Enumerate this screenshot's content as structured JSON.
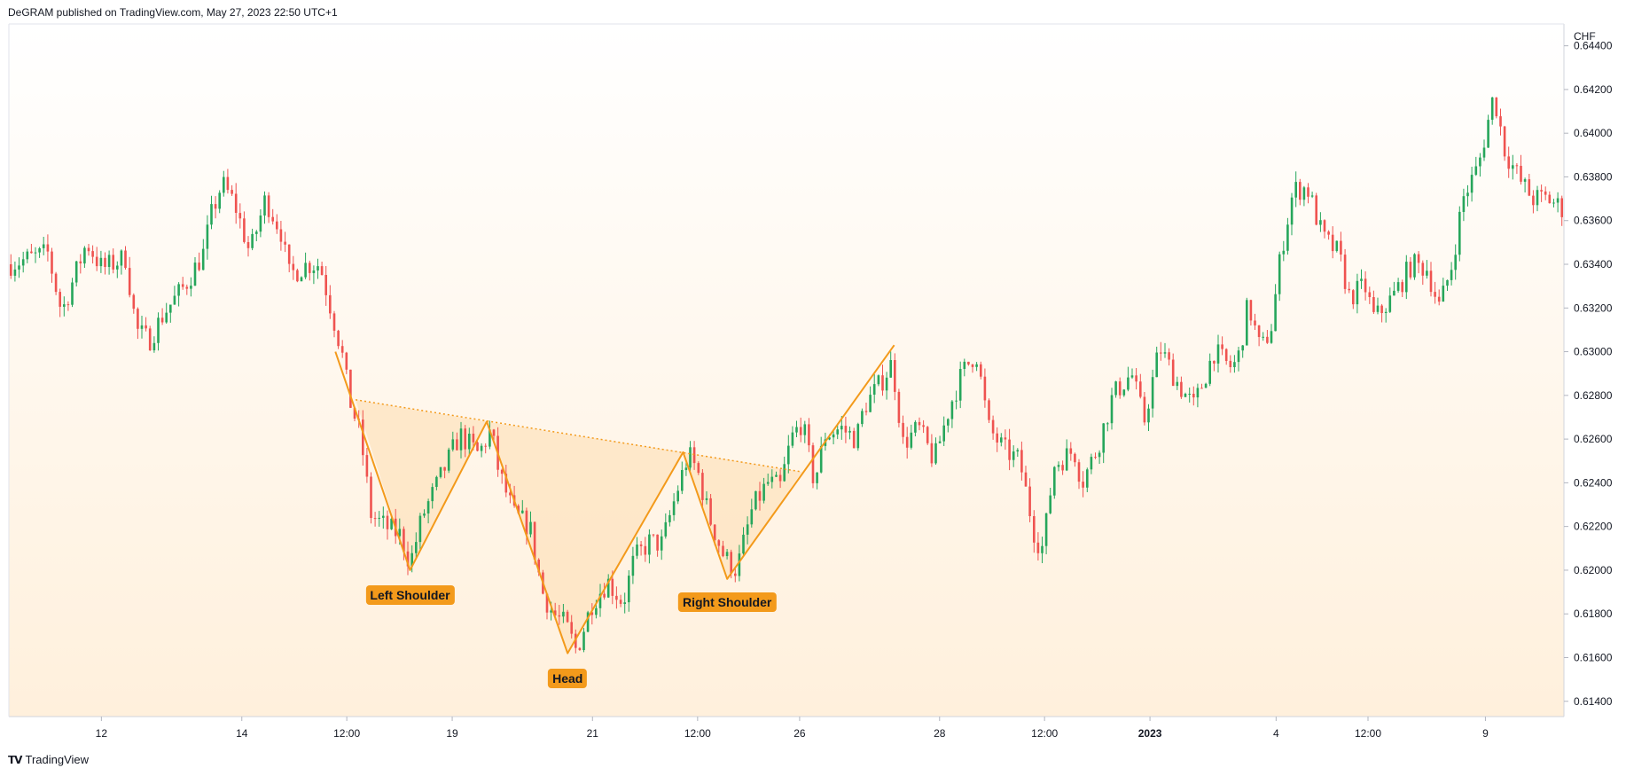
{
  "header": {
    "publisher_line": "DeGRAM published on TradingView.com, May 27, 2023 22:50 UTC+1"
  },
  "footer": {
    "brand": "TradingView",
    "logo_icon": "tradingview-logo-icon"
  },
  "colors": {
    "up": "#26a65b",
    "down": "#ef5350",
    "pattern": "#f39a1b",
    "fill": "#fde3bf",
    "bg_top": "#ffffff",
    "bg_bottom": "#fff0dc"
  },
  "chart_data": {
    "type": "candlestick",
    "currency_label": "CHF",
    "ylim": [
      0.6133,
      0.645
    ],
    "y_ticks": [
      "0.64400",
      "0.64200",
      "0.64000",
      "0.63800",
      "0.63600",
      "0.63400",
      "0.63200",
      "0.63000",
      "0.62800",
      "0.62600",
      "0.62400",
      "0.62200",
      "0.62000",
      "0.61800",
      "0.61600",
      "0.61400"
    ],
    "x_ticks": [
      {
        "label": "12",
        "t": 0.0595,
        "bold": false
      },
      {
        "label": "14",
        "t": 0.1498,
        "bold": false
      },
      {
        "label": "12:00",
        "t": 0.2173,
        "bold": false
      },
      {
        "label": "19",
        "t": 0.2851,
        "bold": false
      },
      {
        "label": "21",
        "t": 0.3753,
        "bold": false
      },
      {
        "label": "12:00",
        "t": 0.4429,
        "bold": false
      },
      {
        "label": "26",
        "t": 0.5085,
        "bold": false
      },
      {
        "label": "28",
        "t": 0.5985,
        "bold": false
      },
      {
        "label": "12:00",
        "t": 0.666,
        "bold": false
      },
      {
        "label": "2023",
        "t": 0.7338,
        "bold": true
      },
      {
        "label": "4",
        "t": 0.8149,
        "bold": false
      },
      {
        "label": "12:00",
        "t": 0.874,
        "bold": false
      },
      {
        "label": "9",
        "t": 0.9495,
        "bold": false
      }
    ],
    "price_path": [
      [
        0.0,
        0.634
      ],
      [
        0.025,
        0.6345
      ],
      [
        0.034,
        0.6318
      ],
      [
        0.05,
        0.635
      ],
      [
        0.06,
        0.6338
      ],
      [
        0.075,
        0.6343
      ],
      [
        0.082,
        0.631
      ],
      [
        0.09,
        0.6305
      ],
      [
        0.1,
        0.6318
      ],
      [
        0.113,
        0.633
      ],
      [
        0.125,
        0.6345
      ],
      [
        0.13,
        0.6362
      ],
      [
        0.137,
        0.6377
      ],
      [
        0.145,
        0.6368
      ],
      [
        0.155,
        0.6345
      ],
      [
        0.165,
        0.637
      ],
      [
        0.175,
        0.6355
      ],
      [
        0.18,
        0.6335
      ],
      [
        0.192,
        0.634
      ],
      [
        0.2,
        0.634
      ],
      [
        0.206,
        0.6323
      ],
      [
        0.214,
        0.63
      ],
      [
        0.219,
        0.6278
      ],
      [
        0.226,
        0.6262
      ],
      [
        0.233,
        0.6225
      ],
      [
        0.242,
        0.622
      ],
      [
        0.252,
        0.6216
      ],
      [
        0.258,
        0.6203
      ],
      [
        0.266,
        0.6225
      ],
      [
        0.276,
        0.624
      ],
      [
        0.29,
        0.6262
      ],
      [
        0.302,
        0.6253
      ],
      [
        0.31,
        0.6264
      ],
      [
        0.315,
        0.6245
      ],
      [
        0.325,
        0.6225
      ],
      [
        0.335,
        0.622
      ],
      [
        0.343,
        0.619
      ],
      [
        0.35,
        0.618
      ],
      [
        0.358,
        0.6175
      ],
      [
        0.365,
        0.6163
      ],
      [
        0.375,
        0.6185
      ],
      [
        0.385,
        0.6195
      ],
      [
        0.395,
        0.6185
      ],
      [
        0.402,
        0.6205
      ],
      [
        0.412,
        0.6213
      ],
      [
        0.42,
        0.6212
      ],
      [
        0.43,
        0.6237
      ],
      [
        0.437,
        0.6253
      ],
      [
        0.443,
        0.6245
      ],
      [
        0.45,
        0.6225
      ],
      [
        0.46,
        0.6206
      ],
      [
        0.468,
        0.62
      ],
      [
        0.478,
        0.6228
      ],
      [
        0.488,
        0.624
      ],
      [
        0.496,
        0.6238
      ],
      [
        0.503,
        0.626
      ],
      [
        0.51,
        0.6268
      ],
      [
        0.518,
        0.624
      ],
      [
        0.525,
        0.6262
      ],
      [
        0.535,
        0.6265
      ],
      [
        0.545,
        0.626
      ],
      [
        0.55,
        0.6275
      ],
      [
        0.56,
        0.6285
      ],
      [
        0.568,
        0.6295
      ],
      [
        0.575,
        0.6258
      ],
      [
        0.585,
        0.6265
      ],
      [
        0.595,
        0.625
      ],
      [
        0.605,
        0.6275
      ],
      [
        0.613,
        0.629
      ],
      [
        0.622,
        0.63
      ],
      [
        0.63,
        0.6265
      ],
      [
        0.64,
        0.6255
      ],
      [
        0.65,
        0.625
      ],
      [
        0.66,
        0.6215
      ],
      [
        0.665,
        0.621
      ],
      [
        0.672,
        0.6248
      ],
      [
        0.685,
        0.6255
      ],
      [
        0.69,
        0.624
      ],
      [
        0.7,
        0.6256
      ],
      [
        0.71,
        0.628
      ],
      [
        0.722,
        0.629
      ],
      [
        0.73,
        0.6268
      ],
      [
        0.74,
        0.6302
      ],
      [
        0.752,
        0.6285
      ],
      [
        0.762,
        0.6275
      ],
      [
        0.775,
        0.63
      ],
      [
        0.785,
        0.6293
      ],
      [
        0.79,
        0.6295
      ],
      [
        0.797,
        0.6322
      ],
      [
        0.805,
        0.63
      ],
      [
        0.812,
        0.6312
      ],
      [
        0.818,
        0.6345
      ],
      [
        0.826,
        0.6374
      ],
      [
        0.835,
        0.6375
      ],
      [
        0.845,
        0.6352
      ],
      [
        0.855,
        0.6345
      ],
      [
        0.862,
        0.6325
      ],
      [
        0.872,
        0.633
      ],
      [
        0.878,
        0.6315
      ],
      [
        0.89,
        0.6325
      ],
      [
        0.902,
        0.634
      ],
      [
        0.912,
        0.6338
      ],
      [
        0.92,
        0.632
      ],
      [
        0.928,
        0.634
      ],
      [
        0.935,
        0.637
      ],
      [
        0.945,
        0.6385
      ],
      [
        0.955,
        0.6418
      ],
      [
        0.962,
        0.6392
      ],
      [
        0.972,
        0.6378
      ],
      [
        0.98,
        0.637
      ],
      [
        0.99,
        0.637
      ],
      [
        1.0,
        0.6365
      ]
    ],
    "pattern_lines": [
      [
        [
          0.21,
          0.63
        ],
        [
          0.258,
          0.62
        ],
        [
          0.3073,
          0.6268
        ],
        [
          0.3593,
          0.6162
        ],
        [
          0.4336,
          0.6254
        ],
        [
          0.4619,
          0.6196
        ],
        [
          0.5693,
          0.6303
        ]
      ]
    ],
    "neckline": [
      [
        0.223,
        0.6278
      ],
      [
        0.51,
        0.6245
      ]
    ],
    "pattern_area": [
      [
        [
          0.223,
          0.6278
        ],
        [
          0.258,
          0.62
        ],
        [
          0.3073,
          0.6268
        ]
      ],
      [
        [
          0.3073,
          0.6268
        ],
        [
          0.3593,
          0.6162
        ],
        [
          0.4336,
          0.6254
        ]
      ],
      [
        [
          0.4336,
          0.6254
        ],
        [
          0.4619,
          0.6196
        ],
        [
          0.51,
          0.6245
        ]
      ]
    ],
    "annotations": [
      {
        "id": "left-shoulder-label",
        "text": "Left Shoulder",
        "t": 0.258,
        "y": 0.6193
      },
      {
        "id": "head-label",
        "text": "Head",
        "t": 0.3593,
        "y": 0.6155
      },
      {
        "id": "right-shoulder-label",
        "text": "Right Shoulder",
        "t": 0.4619,
        "y": 0.619
      }
    ]
  }
}
